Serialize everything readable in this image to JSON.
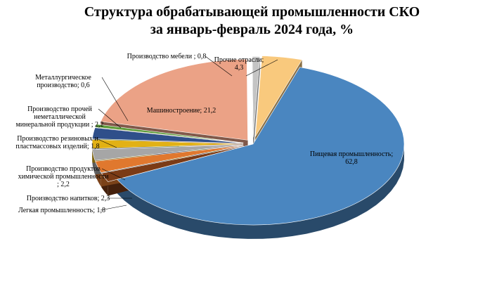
{
  "chart_data": {
    "type": "pie",
    "title": [
      "Структура обрабатывающей промышленности СКО",
      "за январь-февраль 2024 года, %"
    ],
    "slices": [
      {
        "name": "Пищевая промышленность",
        "value": 62.8,
        "value_label": "62,8",
        "color": "#4A86C0",
        "label_lines": [
          "Пищевая промышленность;",
          "62,8"
        ]
      },
      {
        "name": "Легкая промышленность",
        "value": 1.8,
        "value_label": "1,8",
        "color": "#7B3B16",
        "label_lines": [
          "Легкая промышленность; 1,8"
        ]
      },
      {
        "name": "Производство напитков",
        "value": 2.3,
        "value_label": "2,3",
        "color": "#E0782E",
        "label_lines": [
          "Производство напитков; 2,3"
        ]
      },
      {
        "name": "Производство продуктов химической промышленности",
        "value": 2.2,
        "value_label": "2,2",
        "color": "#A6A6A6",
        "label_lines": [
          "Производство продуктов",
          "химической промышленности",
          "; 2,2"
        ]
      },
      {
        "name": "Производство резиновых и пластмассовых изделий",
        "value": 1.8,
        "value_label": "1,8",
        "color": "#E2B115",
        "label_lines": [
          "Производство резиновых и",
          "пластмассовых изделий; 1,8"
        ]
      },
      {
        "name": "Производство прочей неметаллической минеральной продукции",
        "value": 2.2,
        "value_label": "2,2",
        "color": "#2F4F8A",
        "label_lines": [
          "Производство прочей",
          "неметаллической",
          "минеральной продукции ; 2,2"
        ]
      },
      {
        "name": "Металлургическое производство",
        "value": 0.6,
        "value_label": "0,6",
        "color": "#5E9C3A",
        "label_lines": [
          "Металлургическое",
          "производство; 0,6"
        ]
      },
      {
        "name": "Машиностроение",
        "value": 21.2,
        "value_label": "21,2",
        "color": "#EBA286",
        "label_lines": [
          "Машиностроение; 21,2"
        ]
      },
      {
        "name": "Производство мебели",
        "value": 0.8,
        "value_label": "0,8",
        "color": "#C4C4C4",
        "label_lines": [
          "Производство мебели ; 0,8"
        ]
      },
      {
        "name": "Прочие отрасли",
        "value": 4.3,
        "value_label": "4,3",
        "color": "#F9C97D",
        "label_lines": [
          "Прочие отрасли;",
          "4,3"
        ]
      }
    ],
    "legend": "none"
  }
}
